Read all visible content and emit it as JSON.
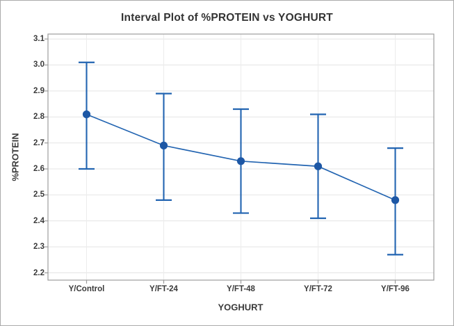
{
  "window": {
    "background": "#FFFFFF",
    "border_color": "#ABABAB"
  },
  "chart_data": {
    "type": "scatter",
    "variant": "interval_plot_with_error_bars",
    "title": "Interval Plot of %PROTEIN vs YOGHURT",
    "xlabel": "YOGHURT",
    "ylabel": "%PROTEIN",
    "categories": [
      "Y/Control",
      "Y/FT-24",
      "Y/FT-48",
      "Y/FT-72",
      "Y/FT-96"
    ],
    "points": [
      {
        "category": "Y/Control",
        "mean": 2.81,
        "ci_low": 2.6,
        "ci_high": 3.01
      },
      {
        "category": "Y/FT-24",
        "mean": 2.69,
        "ci_low": 2.48,
        "ci_high": 2.89
      },
      {
        "category": "Y/FT-48",
        "mean": 2.63,
        "ci_low": 2.43,
        "ci_high": 2.83
      },
      {
        "category": "Y/FT-72",
        "mean": 2.61,
        "ci_low": 2.41,
        "ci_high": 2.81
      },
      {
        "category": "Y/FT-96",
        "mean": 2.48,
        "ci_low": 2.27,
        "ci_high": 2.68
      }
    ],
    "yticks": [
      2.2,
      2.3,
      2.4,
      2.5,
      2.6,
      2.7,
      2.8,
      2.9,
      3.0,
      3.1
    ],
    "ylim": [
      2.172,
      3.119
    ],
    "grid": "horizontal-and-vertical",
    "legend": "none",
    "connected_means": true,
    "colors": {
      "line": "#2264B1",
      "point": "#1D57A5",
      "grid_h": "#E4E4E4",
      "grid_v": "#ECECEC",
      "frame": "#9C9C9C",
      "text": "#3A3A3A",
      "title_text": "#333333",
      "figure_border": "#ABABAB"
    }
  }
}
